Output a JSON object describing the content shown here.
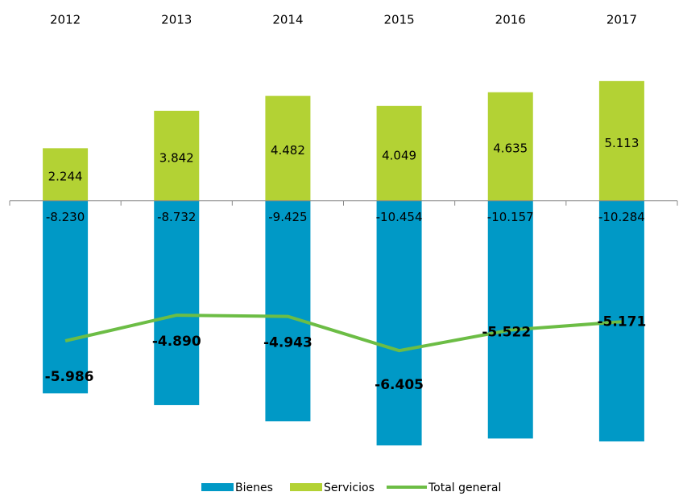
{
  "chart_data": {
    "type": "bar",
    "categories": [
      "2012",
      "2013",
      "2014",
      "2015",
      "2016",
      "2017"
    ],
    "ylim": [
      -11000,
      6000
    ],
    "series": [
      {
        "name": "Bienes",
        "color": "#0099c6",
        "values": [
          -8230,
          -8732,
          -9425,
          -10454,
          -10157,
          -10284
        ],
        "value_labels": [
          "-8.230",
          "-8.732",
          "-9.425",
          "-10.454",
          "-10.157",
          "-10.284"
        ]
      },
      {
        "name": "Servicios",
        "color": "#b3d234",
        "values": [
          2244,
          3842,
          4482,
          4049,
          4635,
          5113
        ],
        "value_labels": [
          "2.244",
          "3.842",
          "4.482",
          "4.049",
          "4.635",
          "5.113"
        ]
      },
      {
        "name": "Total general",
        "type": "line",
        "color": "#6cbd45",
        "values": [
          -5986,
          -4890,
          -4943,
          -6405,
          -5522,
          -5171
        ],
        "value_labels": [
          "-5.986",
          "-4.890",
          "-4.943",
          "-6.405",
          "-5.522",
          "-5.171"
        ]
      }
    ]
  }
}
